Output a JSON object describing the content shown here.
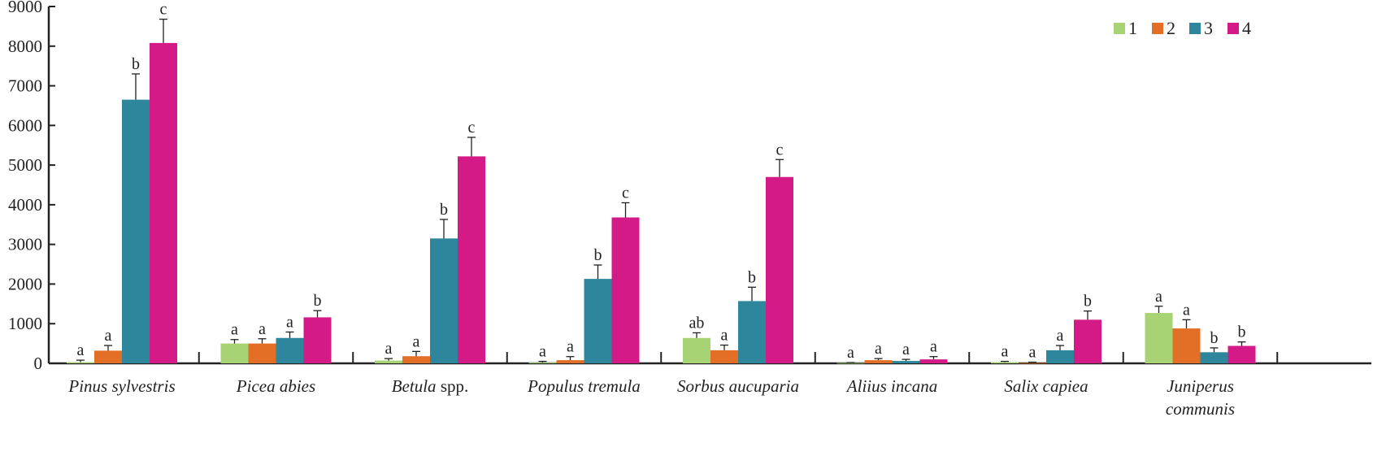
{
  "chart_data": {
    "type": "bar",
    "title": "",
    "xlabel": "",
    "ylabel": "",
    "ylim": [
      0,
      9000
    ],
    "yticks": [
      0,
      1000,
      2000,
      3000,
      4000,
      5000,
      6000,
      7000,
      8000,
      9000
    ],
    "legend_position": "top-right",
    "categories": [
      [
        "Pinus sylvestris"
      ],
      [
        "Picea abies"
      ],
      [
        "Betula",
        " spp."
      ],
      [
        "Populus tremula"
      ],
      [
        "Sorbus aucuparia"
      ],
      [
        "Aliius incana"
      ],
      [
        "Salix capiea"
      ],
      [
        "Juniperus",
        "communis"
      ]
    ],
    "series": [
      {
        "name": "1",
        "color": "#a8d374",
        "values": [
          30,
          500,
          70,
          20,
          640,
          10,
          30,
          1270
        ],
        "errors": [
          50,
          100,
          50,
          30,
          130,
          10,
          20,
          170
        ],
        "letters": [
          "a",
          "a",
          "a",
          "a",
          "ab",
          "a",
          "a",
          "a"
        ]
      },
      {
        "name": "2",
        "color": "#e36f26",
        "values": [
          320,
          500,
          180,
          80,
          330,
          80,
          10,
          880
        ],
        "errors": [
          130,
          120,
          120,
          90,
          130,
          40,
          20,
          220
        ],
        "letters": [
          "a",
          "a",
          "a",
          "a",
          "a",
          "a",
          "a",
          "a"
        ]
      },
      {
        "name": "3",
        "color": "#2e869c",
        "values": [
          6650,
          640,
          3150,
          2130,
          1570,
          60,
          330,
          280
        ],
        "errors": [
          650,
          150,
          480,
          350,
          350,
          40,
          120,
          110
        ],
        "letters": [
          "b",
          "a",
          "b",
          "b",
          "b",
          "a",
          "a",
          "b"
        ]
      },
      {
        "name": "4",
        "color": "#d31a86",
        "values": [
          8080,
          1160,
          5220,
          3680,
          4700,
          100,
          1100,
          440
        ],
        "errors": [
          600,
          170,
          480,
          370,
          440,
          70,
          220,
          100
        ],
        "letters": [
          "c",
          "b",
          "c",
          "c",
          "c",
          "a",
          "b",
          "b"
        ]
      }
    ]
  }
}
